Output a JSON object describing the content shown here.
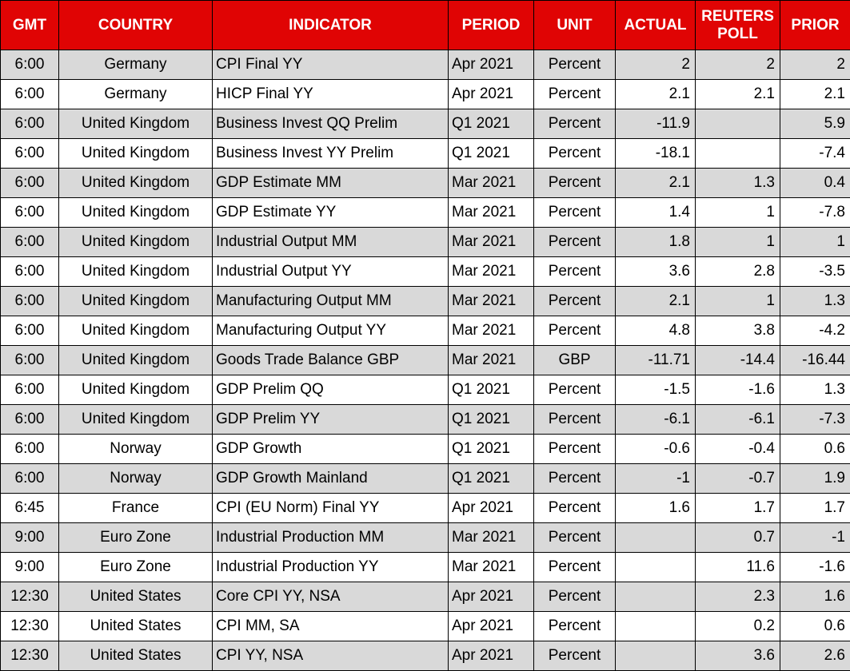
{
  "colors": {
    "header_bg": "#E00404",
    "header_text": "#FFFFFF",
    "row_stripe_bg": "#D9D9D9",
    "row_bg": "#FFFFFF",
    "border": "#000000",
    "body_text": "#000000"
  },
  "chart_data": {
    "type": "table",
    "columns": [
      {
        "key": "gmt",
        "label": "GMT",
        "align": "center"
      },
      {
        "key": "country",
        "label": "COUNTRY",
        "align": "center"
      },
      {
        "key": "indicator",
        "label": "INDICATOR",
        "align": "left"
      },
      {
        "key": "period",
        "label": "PERIOD",
        "align": "left"
      },
      {
        "key": "unit",
        "label": "UNIT",
        "align": "center"
      },
      {
        "key": "actual",
        "label": "ACTUAL",
        "align": "right"
      },
      {
        "key": "reuters_poll",
        "label": "REUTERS POLL",
        "align": "right"
      },
      {
        "key": "prior",
        "label": "PRIOR",
        "align": "right"
      }
    ],
    "rows": [
      [
        "6:00",
        "Germany",
        "CPI Final YY",
        "Apr 2021",
        "Percent",
        "2",
        "2",
        "2"
      ],
      [
        "6:00",
        "Germany",
        "HICP Final YY",
        "Apr 2021",
        "Percent",
        "2.1",
        "2.1",
        "2.1"
      ],
      [
        "6:00",
        "United Kingdom",
        "Business Invest QQ Prelim",
        "Q1 2021",
        "Percent",
        "-11.9",
        "",
        "5.9"
      ],
      [
        "6:00",
        "United Kingdom",
        "Business Invest YY Prelim",
        "Q1 2021",
        "Percent",
        "-18.1",
        "",
        "-7.4"
      ],
      [
        "6:00",
        "United Kingdom",
        "GDP Estimate MM",
        "Mar 2021",
        "Percent",
        "2.1",
        "1.3",
        "0.4"
      ],
      [
        "6:00",
        "United Kingdom",
        "GDP Estimate YY",
        "Mar 2021",
        "Percent",
        "1.4",
        "1",
        "-7.8"
      ],
      [
        "6:00",
        "United Kingdom",
        "Industrial Output MM",
        "Mar 2021",
        "Percent",
        "1.8",
        "1",
        "1"
      ],
      [
        "6:00",
        "United Kingdom",
        "Industrial Output YY",
        "Mar 2021",
        "Percent",
        "3.6",
        "2.8",
        "-3.5"
      ],
      [
        "6:00",
        "United Kingdom",
        "Manufacturing Output MM",
        "Mar 2021",
        "Percent",
        "2.1",
        "1",
        "1.3"
      ],
      [
        "6:00",
        "United Kingdom",
        "Manufacturing Output YY",
        "Mar 2021",
        "Percent",
        "4.8",
        "3.8",
        "-4.2"
      ],
      [
        "6:00",
        "United Kingdom",
        "Goods Trade Balance GBP",
        "Mar 2021",
        "GBP",
        "-11.71",
        "-14.4",
        "-16.44"
      ],
      [
        "6:00",
        "United Kingdom",
        "GDP Prelim QQ",
        "Q1 2021",
        "Percent",
        "-1.5",
        "-1.6",
        "1.3"
      ],
      [
        "6:00",
        "United Kingdom",
        "GDP Prelim YY",
        "Q1 2021",
        "Percent",
        "-6.1",
        "-6.1",
        "-7.3"
      ],
      [
        "6:00",
        "Norway",
        "GDP Growth",
        "Q1 2021",
        "Percent",
        "-0.6",
        "-0.4",
        "0.6"
      ],
      [
        "6:00",
        "Norway",
        "GDP Growth Mainland",
        "Q1 2021",
        "Percent",
        "-1",
        "-0.7",
        "1.9"
      ],
      [
        "6:45",
        "France",
        "CPI (EU Norm) Final YY",
        "Apr 2021",
        "Percent",
        "1.6",
        "1.7",
        "1.7"
      ],
      [
        "9:00",
        "Euro Zone",
        "Industrial Production MM",
        "Mar 2021",
        "Percent",
        "",
        "0.7",
        "-1"
      ],
      [
        "9:00",
        "Euro Zone",
        "Industrial Production YY",
        "Mar 2021",
        "Percent",
        "",
        "11.6",
        "-1.6"
      ],
      [
        "12:30",
        "United States",
        "Core CPI YY, NSA",
        "Apr 2021",
        "Percent",
        "",
        "2.3",
        "1.6"
      ],
      [
        "12:30",
        "United States",
        "CPI MM, SA",
        "Apr 2021",
        "Percent",
        "",
        "0.2",
        "0.6"
      ],
      [
        "12:30",
        "United States",
        "CPI YY, NSA",
        "Apr 2021",
        "Percent",
        "",
        "3.6",
        "2.6"
      ]
    ]
  }
}
